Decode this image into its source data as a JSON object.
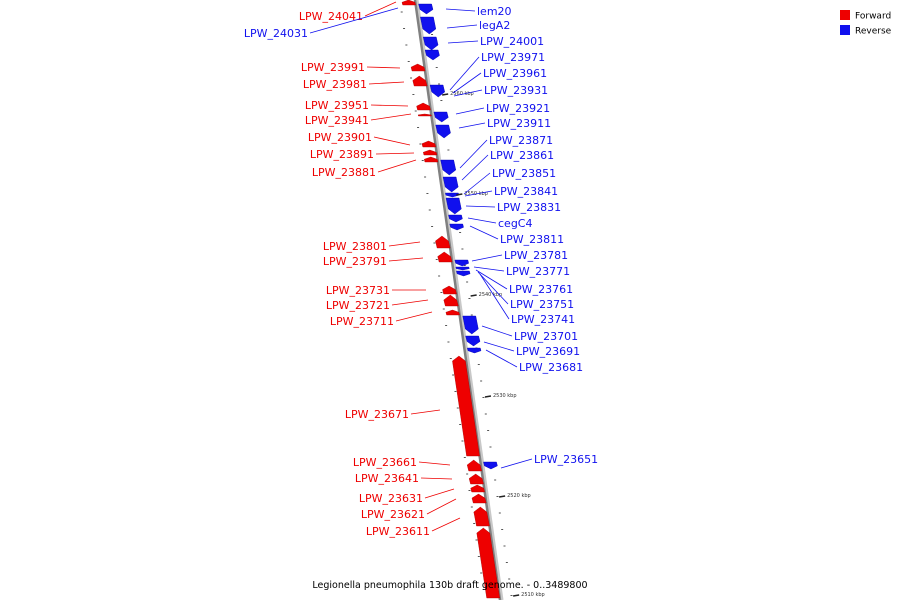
{
  "title": "Legionella pneumophila 130b draft genome. - 0..3489800",
  "colors": {
    "forward": "#ee0000",
    "reverse": "#1010ee",
    "backbone": "#808080"
  },
  "legend": [
    {
      "key": "forward",
      "label": "Forward"
    },
    {
      "key": "reverse",
      "label": "Reverse"
    }
  ],
  "ticks": [
    "2560 kbp",
    "2550 kbp",
    "2540 kbp",
    "2530 kbp",
    "2520 kbp",
    "2510 kbp"
  ],
  "forward_genes": [
    "LPW_24041",
    "LPW_23991",
    "LPW_23981",
    "LPW_23951",
    "LPW_23941",
    "LPW_23901",
    "LPW_23891",
    "LPW_23881",
    "LPW_23801",
    "LPW_23791",
    "LPW_23731",
    "LPW_23721",
    "LPW_23711",
    "LPW_23671",
    "LPW_23661",
    "LPW_23641",
    "LPW_23631",
    "LPW_23621",
    "LPW_23611"
  ],
  "reverse_genes": [
    "LPW_24031",
    "lem20",
    "legA2",
    "LPW_24001",
    "LPW_23971",
    "LPW_23961",
    "LPW_23931",
    "LPW_23921",
    "LPW_23911",
    "LPW_23871",
    "LPW_23861",
    "LPW_23851",
    "LPW_23841",
    "LPW_23831",
    "cegC4",
    "LPW_23811",
    "LPW_23781",
    "LPW_23771",
    "LPW_23761",
    "LPW_23751",
    "LPW_23741",
    "LPW_23701",
    "LPW_23691",
    "LPW_23681",
    "LPW_23651"
  ]
}
